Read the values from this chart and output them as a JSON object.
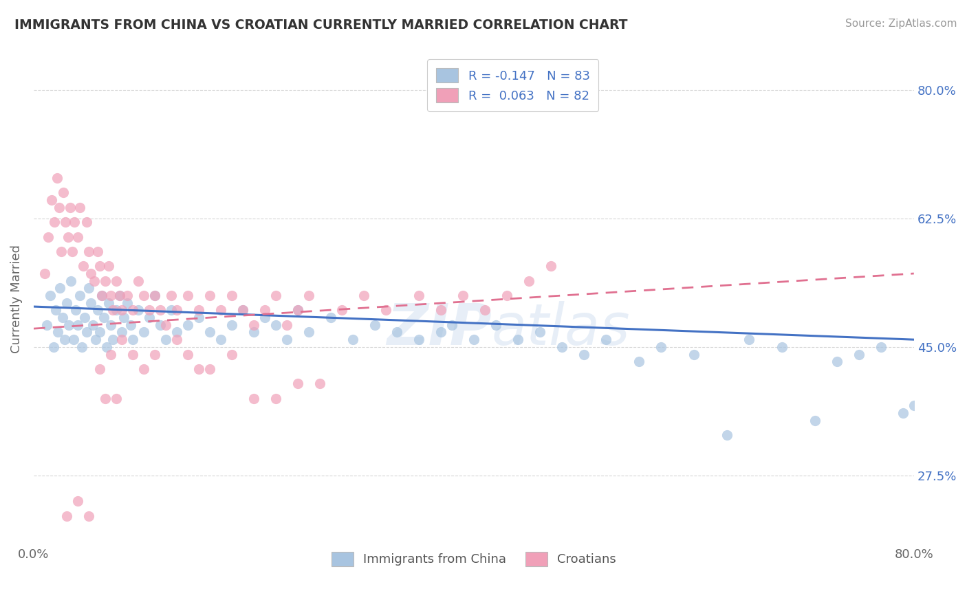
{
  "title": "IMMIGRANTS FROM CHINA VS CROATIAN CURRENTLY MARRIED CORRELATION CHART",
  "source": "Source: ZipAtlas.com",
  "ylabel": "Currently Married",
  "xlim": [
    0.0,
    80.0
  ],
  "ylim": [
    18.0,
    85.0
  ],
  "ytick_values": [
    27.5,
    45.0,
    62.5,
    80.0
  ],
  "background_color": "#ffffff",
  "grid_color": "#cccccc",
  "title_color": "#333333",
  "trend_china_color": "#4472c4",
  "trend_croatian_color": "#e07090",
  "china_dot_color": "#a8c4e0",
  "croatian_dot_color": "#f0a0b8",
  "legend_text_color": "#4472c4",
  "watermark": "ZIPatlas",
  "china_R": -0.147,
  "china_N": 83,
  "croatian_R": 0.063,
  "croatian_N": 82,
  "china_x": [
    1.2,
    1.5,
    1.8,
    2.0,
    2.2,
    2.4,
    2.6,
    2.8,
    3.0,
    3.2,
    3.4,
    3.6,
    3.8,
    4.0,
    4.2,
    4.4,
    4.6,
    4.8,
    5.0,
    5.2,
    5.4,
    5.6,
    5.8,
    6.0,
    6.2,
    6.4,
    6.6,
    6.8,
    7.0,
    7.2,
    7.5,
    7.8,
    8.0,
    8.2,
    8.5,
    8.8,
    9.0,
    9.5,
    10.0,
    10.5,
    11.0,
    11.5,
    12.0,
    12.5,
    13.0,
    14.0,
    15.0,
    16.0,
    17.0,
    18.0,
    19.0,
    20.0,
    21.0,
    22.0,
    23.0,
    24.0,
    25.0,
    27.0,
    29.0,
    31.0,
    33.0,
    35.0,
    37.0,
    38.0,
    40.0,
    42.0,
    44.0,
    46.0,
    48.0,
    50.0,
    52.0,
    55.0,
    57.0,
    60.0,
    63.0,
    65.0,
    68.0,
    71.0,
    73.0,
    75.0,
    77.0,
    79.0,
    80.0
  ],
  "china_y": [
    48.0,
    52.0,
    45.0,
    50.0,
    47.0,
    53.0,
    49.0,
    46.0,
    51.0,
    48.0,
    54.0,
    46.0,
    50.0,
    48.0,
    52.0,
    45.0,
    49.0,
    47.0,
    53.0,
    51.0,
    48.0,
    46.0,
    50.0,
    47.0,
    52.0,
    49.0,
    45.0,
    51.0,
    48.0,
    46.0,
    50.0,
    52.0,
    47.0,
    49.0,
    51.0,
    48.0,
    46.0,
    50.0,
    47.0,
    49.0,
    52.0,
    48.0,
    46.0,
    50.0,
    47.0,
    48.0,
    49.0,
    47.0,
    46.0,
    48.0,
    50.0,
    47.0,
    49.0,
    48.0,
    46.0,
    50.0,
    47.0,
    49.0,
    46.0,
    48.0,
    47.0,
    46.0,
    47.0,
    48.0,
    46.0,
    48.0,
    46.0,
    47.0,
    45.0,
    44.0,
    46.0,
    43.0,
    45.0,
    44.0,
    33.0,
    46.0,
    45.0,
    35.0,
    43.0,
    44.0,
    45.0,
    36.0,
    37.0
  ],
  "croatian_x": [
    1.0,
    1.3,
    1.6,
    1.9,
    2.1,
    2.3,
    2.5,
    2.7,
    2.9,
    3.1,
    3.3,
    3.5,
    3.7,
    4.0,
    4.2,
    4.5,
    4.8,
    5.0,
    5.2,
    5.5,
    5.8,
    6.0,
    6.2,
    6.5,
    6.8,
    7.0,
    7.2,
    7.5,
    7.8,
    8.0,
    8.5,
    9.0,
    9.5,
    10.0,
    10.5,
    11.0,
    11.5,
    12.0,
    12.5,
    13.0,
    14.0,
    15.0,
    16.0,
    17.0,
    18.0,
    19.0,
    20.0,
    21.0,
    22.0,
    23.0,
    24.0,
    25.0,
    28.0,
    30.0,
    32.0,
    35.0,
    37.0,
    39.0,
    41.0,
    43.0,
    45.0,
    47.0,
    8.0,
    9.0,
    10.0,
    11.0,
    6.0,
    7.0,
    13.0,
    14.0,
    16.0,
    18.0,
    20.0,
    22.0,
    24.0,
    26.0,
    3.0,
    4.0,
    5.0,
    6.5,
    7.5,
    15.0
  ],
  "croatian_y": [
    55.0,
    60.0,
    65.0,
    62.0,
    68.0,
    64.0,
    58.0,
    66.0,
    62.0,
    60.0,
    64.0,
    58.0,
    62.0,
    60.0,
    64.0,
    56.0,
    62.0,
    58.0,
    55.0,
    54.0,
    58.0,
    56.0,
    52.0,
    54.0,
    56.0,
    52.0,
    50.0,
    54.0,
    52.0,
    50.0,
    52.0,
    50.0,
    54.0,
    52.0,
    50.0,
    52.0,
    50.0,
    48.0,
    52.0,
    50.0,
    52.0,
    50.0,
    52.0,
    50.0,
    52.0,
    50.0,
    48.0,
    50.0,
    52.0,
    48.0,
    50.0,
    52.0,
    50.0,
    52.0,
    50.0,
    52.0,
    50.0,
    52.0,
    50.0,
    52.0,
    54.0,
    56.0,
    46.0,
    44.0,
    42.0,
    44.0,
    42.0,
    44.0,
    46.0,
    44.0,
    42.0,
    44.0,
    38.0,
    38.0,
    40.0,
    40.0,
    22.0,
    24.0,
    22.0,
    38.0,
    38.0,
    42.0
  ]
}
